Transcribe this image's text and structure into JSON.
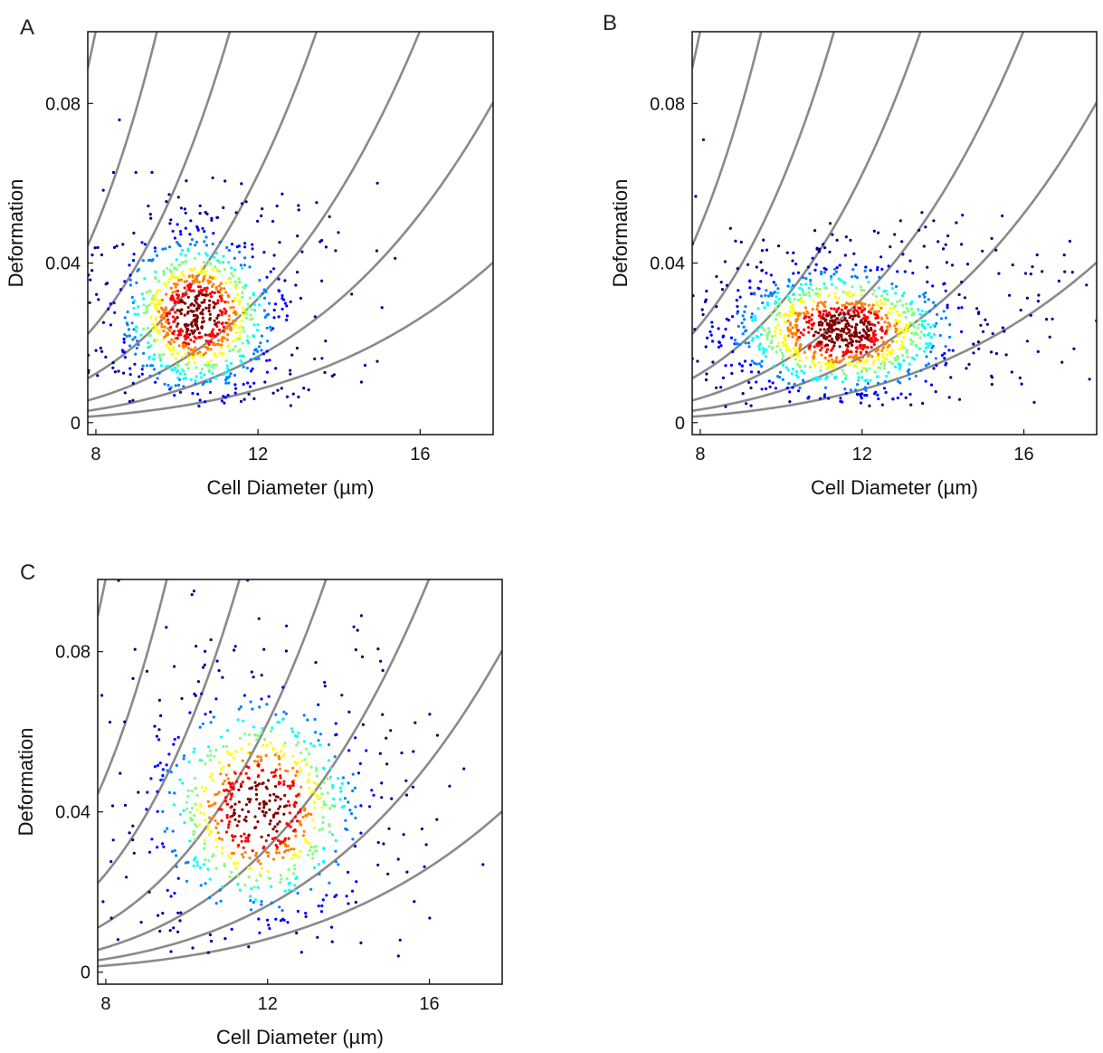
{
  "chart_data": [
    {
      "panel": "A",
      "type": "scatter",
      "xlabel": "Cell Diameter (µm)",
      "ylabel": "Deformation",
      "xlim": [
        7.8,
        17.8
      ],
      "ylim": [
        -0.003,
        0.098
      ],
      "xticks": [
        "8",
        "12",
        "16"
      ],
      "xtick_values": [
        8,
        12,
        16
      ],
      "yticks": [
        "0",
        "0.04",
        "0.08"
      ],
      "ytick_values": [
        0,
        0.04,
        0.08
      ],
      "isoline_coefficients": [
        4e-07,
        8e-07,
        1.5e-06,
        3e-06,
        6e-06,
        1.2e-05,
        2.4e-05,
        5e-05,
        0.0001,
        0.0002
      ],
      "density_cluster": {
        "center": [
          10.5,
          0.027
        ],
        "spread": [
          0.9,
          0.0095
        ],
        "count": 1100
      },
      "color_scale": [
        "#00008f",
        "#0000ff",
        "#0080ff",
        "#00ffff",
        "#80ff80",
        "#ffff00",
        "#ff8000",
        "#ff0000",
        "#800000"
      ]
    },
    {
      "panel": "B",
      "type": "scatter",
      "xlabel": "Cell Diameter (µm)",
      "ylabel": "Deformation",
      "xlim": [
        7.8,
        17.8
      ],
      "ylim": [
        -0.003,
        0.098
      ],
      "xticks": [
        "8",
        "12",
        "16"
      ],
      "xtick_values": [
        8,
        12,
        16
      ],
      "yticks": [
        "0",
        "0.04",
        "0.08"
      ],
      "ytick_values": [
        0,
        0.04,
        0.08
      ],
      "isoline_coefficients": [
        4e-07,
        8e-07,
        1.5e-06,
        3e-06,
        6e-06,
        1.2e-05,
        2.4e-05,
        5e-05,
        0.0001,
        0.0002
      ],
      "density_cluster": {
        "center": [
          11.5,
          0.023
        ],
        "spread": [
          1.3,
          0.0075
        ],
        "count": 1400
      },
      "color_scale": [
        "#00008f",
        "#0000ff",
        "#0080ff",
        "#00ffff",
        "#80ff80",
        "#ffff00",
        "#ff8000",
        "#ff0000",
        "#800000"
      ]
    },
    {
      "panel": "C",
      "type": "scatter",
      "xlabel": "Cell Diameter (µm)",
      "ylabel": "Deformation",
      "xlim": [
        7.8,
        17.8
      ],
      "ylim": [
        -0.003,
        0.098
      ],
      "xticks": [
        "8",
        "12",
        "16"
      ],
      "xtick_values": [
        8,
        12,
        16
      ],
      "yticks": [
        "0",
        "0.04",
        "0.08"
      ],
      "ytick_values": [
        0,
        0.04,
        0.08
      ],
      "isoline_coefficients": [
        4e-07,
        8e-07,
        1.5e-06,
        3e-06,
        6e-06,
        1.2e-05,
        2.4e-05,
        5e-05,
        0.0001,
        0.0002
      ],
      "density_cluster": {
        "center": [
          11.8,
          0.041
        ],
        "spread": [
          1.2,
          0.013
        ],
        "count": 900
      },
      "color_scale": [
        "#00008f",
        "#0000ff",
        "#0080ff",
        "#00ffff",
        "#80ff80",
        "#ffff00",
        "#ff8000",
        "#ff0000",
        "#800000"
      ]
    }
  ]
}
